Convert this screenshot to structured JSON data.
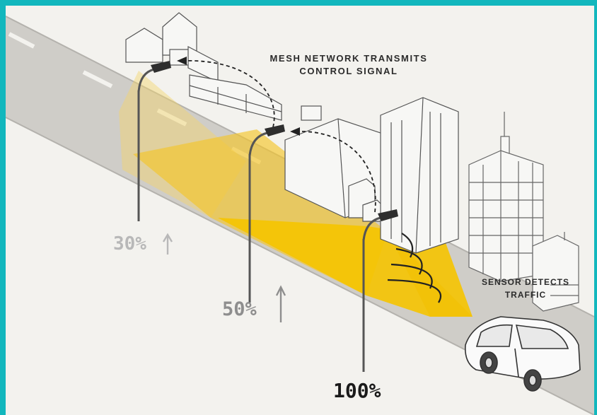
{
  "labels": {
    "mesh": [
      "MESH NETWORK TRANSMITS",
      "CONTROL SIGNAL"
    ],
    "sensor": [
      "SENSOR DETECTS",
      "TRAFFIC"
    ]
  },
  "levels": [
    {
      "text": "30%",
      "color": "#b8b8b8",
      "arrow": true
    },
    {
      "text": "50%",
      "color": "#8e8e8e",
      "arrow": true
    },
    {
      "text": "100%",
      "color": "#1a1a1a",
      "arrow": false
    }
  ],
  "colors": {
    "border": "#12b7bd",
    "background": "#f3f2ee",
    "road": "#cfcdc8",
    "light_yellow": "#f5c400",
    "outline": "#4a4a4a"
  },
  "icons": [
    "building-icon",
    "street-lamp-icon",
    "car-icon",
    "signal-wave-icon",
    "up-arrow-icon"
  ]
}
